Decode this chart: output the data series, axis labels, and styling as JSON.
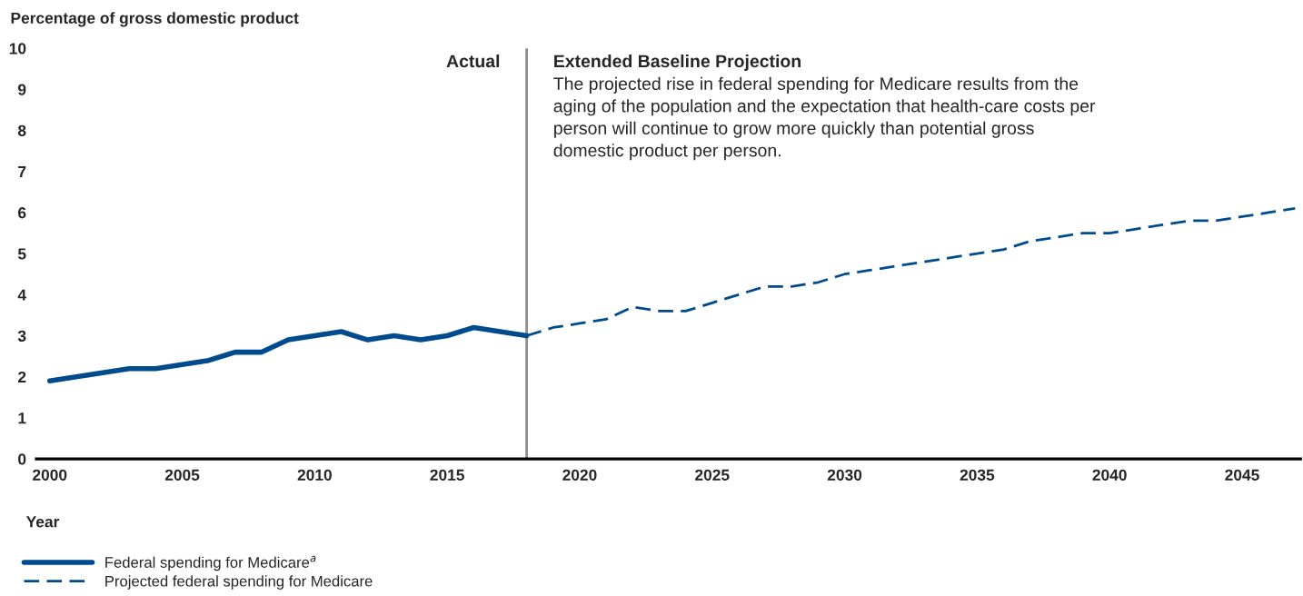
{
  "chart_data": {
    "type": "line",
    "ylabel": "Percentage of gross domestic product",
    "xlabel": "Year",
    "xlim": [
      1999.5,
      2047.2
    ],
    "xticks": [
      2000,
      2005,
      2010,
      2015,
      2020,
      2025,
      2030,
      2035,
      2040,
      2045
    ],
    "ylim": [
      0,
      10
    ],
    "yticks": [
      0,
      1,
      2,
      3,
      4,
      5,
      6,
      7,
      8,
      9,
      10
    ],
    "grid": false,
    "legend": "bottom left",
    "series": [
      {
        "name": "Federal spending for Medicare$^{a}$",
        "color": "#004b8d",
        "line_style": "solid",
        "x": [
          2000,
          2001,
          2002,
          2003,
          2004,
          2005,
          2006,
          2007,
          2008,
          2009,
          2010,
          2011,
          2012,
          2013,
          2014,
          2015,
          2016,
          2017,
          2018
        ],
        "values": [
          1.9,
          2.0,
          2.1,
          2.2,
          2.2,
          2.3,
          2.4,
          2.6,
          2.6,
          2.9,
          3.0,
          3.1,
          2.9,
          3.0,
          2.9,
          3.0,
          3.2,
          3.1,
          3.0
        ]
      },
      {
        "name": "Projected federal spending for Medicare",
        "color": "#004b8d",
        "line_style": "dashed",
        "x": [
          2018,
          2019,
          2020,
          2021,
          2022,
          2023,
          2024,
          2025,
          2026,
          2027,
          2028,
          2029,
          2030,
          2031,
          2032,
          2033,
          2034,
          2035,
          2036,
          2037,
          2038,
          2039,
          2040,
          2041,
          2042,
          2043,
          2044,
          2045,
          2046,
          2047
        ],
        "values": [
          3.0,
          3.2,
          3.3,
          3.4,
          3.7,
          3.6,
          3.6,
          3.8,
          4.0,
          4.2,
          4.2,
          4.3,
          4.5,
          4.6,
          4.7,
          4.8,
          4.9,
          5.0,
          5.1,
          5.3,
          5.4,
          5.5,
          5.5,
          5.6,
          5.7,
          5.8,
          5.8,
          5.9,
          6.0,
          6.1
        ]
      }
    ],
    "ref_lines": [
      {
        "axis": "x",
        "value": 2018,
        "color": "#8c8c8c",
        "line_style": "solid"
      }
    ],
    "annotations": [
      "Actual",
      "Extended Baseline Projection",
      "The projected rise in federal spending for Medicare results from the aging of the population and the expectation that health-care costs per person will continue to grow more quickly than potential gross domestic product per person."
    ]
  }
}
